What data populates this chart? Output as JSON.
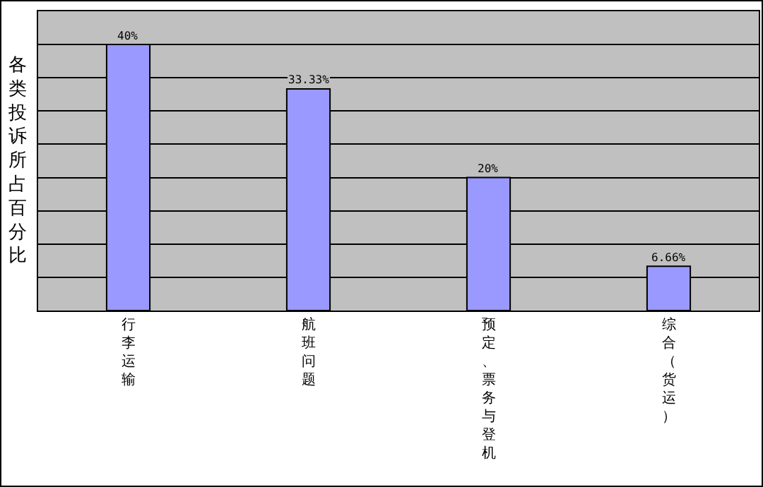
{
  "chart_data": {
    "type": "bar",
    "ylabel": "各类投诉所占百分比",
    "categories": [
      "行李运输",
      "航班问题",
      "预定、票务与登机",
      "综合（货运）"
    ],
    "values": [
      40,
      33.33,
      20,
      6.66
    ],
    "value_labels": [
      "40%",
      "33.33%",
      "20%",
      "6.66%"
    ],
    "color": "#9999ff",
    "ylim": [
      0,
      45
    ],
    "yticks": [
      {
        "value": 0,
        "label": null
      },
      {
        "value": 5,
        "label": null
      },
      {
        "value": 10,
        "label": null
      },
      {
        "value": 15,
        "label": null
      },
      {
        "value": 20,
        "label": null
      },
      {
        "value": 25,
        "label": null
      },
      {
        "value": 30,
        "label": null
      },
      {
        "value": 35,
        "label": null
      },
      {
        "value": 40,
        "label": null
      },
      {
        "value": 45,
        "label": null
      }
    ],
    "grid": "y",
    "tick_labels": "x"
  }
}
